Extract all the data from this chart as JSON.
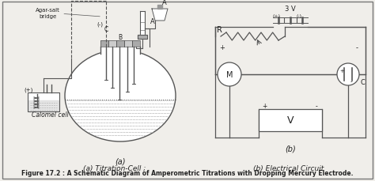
{
  "title": "Figure 17.2 : A Schematic Diagram of Amperometric Titrations with Dropping Mercury Electrode.",
  "subtitle_a": "(a) Titration-Cell ;",
  "subtitle_b": "(b) Electrical Circuit",
  "label_a": "(a)",
  "label_b": "(b)",
  "bg_color": "#f0eeea",
  "line_color": "#555555",
  "text_color": "#222222",
  "fig_width": 4.74,
  "fig_height": 2.3,
  "dpi": 100
}
